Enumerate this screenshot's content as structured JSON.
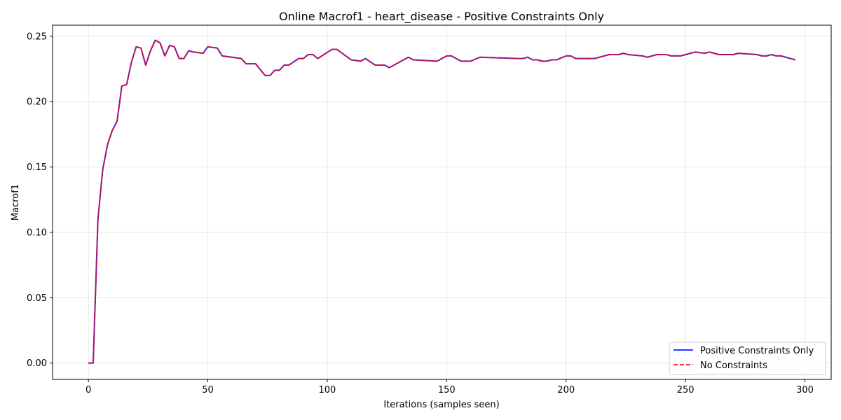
{
  "chart_data": {
    "type": "line",
    "title": "Online Macrof1 - heart_disease - Positive Constraints Only",
    "xlabel": "Iterations (samples seen)",
    "ylabel": "Macrof1",
    "xlim": [
      -15,
      311
    ],
    "ylim": [
      -0.0125,
      0.2585
    ],
    "xticks": [
      0,
      50,
      100,
      150,
      200,
      250,
      300
    ],
    "yticks": [
      0.0,
      0.05,
      0.1,
      0.15,
      0.2,
      0.25
    ],
    "ytick_labels": [
      "0.00",
      "0.05",
      "0.10",
      "0.15",
      "0.20",
      "0.25"
    ],
    "grid": true,
    "legend_position": "lower-right",
    "x": [
      0,
      2,
      4,
      6,
      8,
      10,
      12,
      14,
      16,
      18,
      20,
      22,
      24,
      26,
      28,
      30,
      32,
      34,
      36,
      38,
      40,
      42,
      44,
      48,
      50,
      54,
      56,
      60,
      64,
      66,
      70,
      74,
      76,
      78,
      80,
      82,
      84,
      88,
      90,
      92,
      94,
      96,
      102,
      104,
      110,
      114,
      116,
      120,
      124,
      126,
      134,
      136,
      146,
      150,
      152,
      156,
      160,
      164,
      180,
      182,
      184,
      186,
      188,
      190,
      192,
      194,
      196,
      200,
      202,
      204,
      212,
      218,
      222,
      224,
      226,
      232,
      234,
      238,
      242,
      244,
      248,
      254,
      258,
      260,
      264,
      270,
      272,
      280,
      282,
      284,
      286,
      288,
      290,
      296
    ],
    "series": [
      {
        "name": "Positive Constraints Only",
        "color": "#0000ff",
        "style": "solid",
        "values": [
          0.0,
          0.0,
          0.11,
          0.148,
          0.167,
          0.178,
          0.185,
          0.212,
          0.213,
          0.23,
          0.242,
          0.241,
          0.228,
          0.239,
          0.247,
          0.245,
          0.235,
          0.243,
          0.242,
          0.233,
          0.233,
          0.239,
          0.238,
          0.237,
          0.242,
          0.241,
          0.235,
          0.234,
          0.233,
          0.229,
          0.229,
          0.22,
          0.22,
          0.224,
          0.224,
          0.228,
          0.228,
          0.233,
          0.233,
          0.236,
          0.236,
          0.233,
          0.24,
          0.24,
          0.232,
          0.231,
          0.233,
          0.228,
          0.228,
          0.226,
          0.234,
          0.232,
          0.231,
          0.235,
          0.235,
          0.231,
          0.231,
          0.234,
          0.233,
          0.233,
          0.234,
          0.232,
          0.232,
          0.231,
          0.231,
          0.232,
          0.232,
          0.235,
          0.235,
          0.233,
          0.233,
          0.236,
          0.236,
          0.237,
          0.236,
          0.235,
          0.234,
          0.236,
          0.236,
          0.235,
          0.235,
          0.238,
          0.237,
          0.238,
          0.236,
          0.236,
          0.237,
          0.236,
          0.235,
          0.235,
          0.236,
          0.235,
          0.235,
          0.232
        ]
      },
      {
        "name": "No Constraints",
        "color": "#ff0000",
        "style": "dashed",
        "values": [
          0.0,
          0.0,
          0.11,
          0.148,
          0.167,
          0.178,
          0.185,
          0.212,
          0.213,
          0.23,
          0.242,
          0.241,
          0.228,
          0.239,
          0.247,
          0.245,
          0.235,
          0.243,
          0.242,
          0.233,
          0.233,
          0.239,
          0.238,
          0.237,
          0.242,
          0.241,
          0.235,
          0.234,
          0.233,
          0.229,
          0.229,
          0.22,
          0.22,
          0.224,
          0.224,
          0.228,
          0.228,
          0.233,
          0.233,
          0.236,
          0.236,
          0.233,
          0.24,
          0.24,
          0.232,
          0.231,
          0.233,
          0.228,
          0.228,
          0.226,
          0.234,
          0.232,
          0.231,
          0.235,
          0.235,
          0.231,
          0.231,
          0.234,
          0.233,
          0.233,
          0.234,
          0.232,
          0.232,
          0.231,
          0.231,
          0.232,
          0.232,
          0.235,
          0.235,
          0.233,
          0.233,
          0.236,
          0.236,
          0.237,
          0.236,
          0.235,
          0.234,
          0.236,
          0.236,
          0.235,
          0.235,
          0.238,
          0.237,
          0.238,
          0.236,
          0.236,
          0.237,
          0.236,
          0.235,
          0.235,
          0.236,
          0.235,
          0.235,
          0.232
        ]
      }
    ]
  }
}
